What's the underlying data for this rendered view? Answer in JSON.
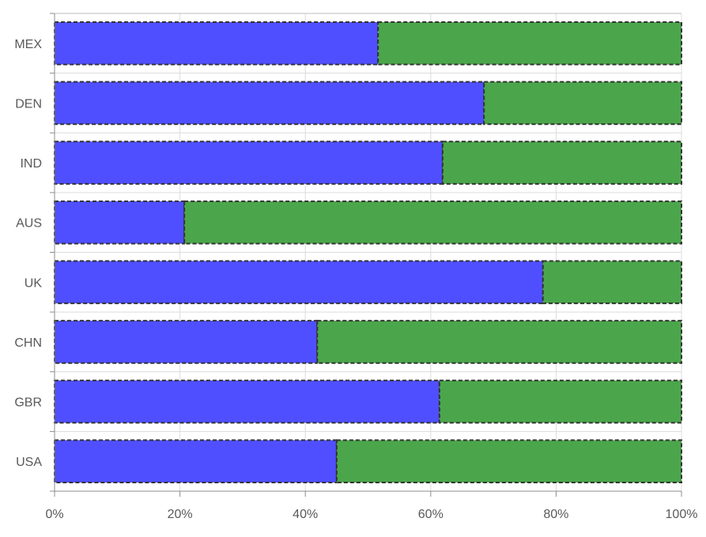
{
  "chart_data": {
    "type": "bar",
    "orientation": "horizontal",
    "stacked": "percent",
    "title": "",
    "xlabel": "",
    "ylabel": "",
    "categories": [
      "MEX",
      "DEN",
      "IND",
      "AUS",
      "UK",
      "CHN",
      "GBR",
      "USA"
    ],
    "series": [
      {
        "color": "#4b4bff",
        "values": [
          51.6,
          68.5,
          61.9,
          20.7,
          77.9,
          41.9,
          61.4,
          45.0
        ]
      },
      {
        "color": "#47a447",
        "values": [
          48.4,
          31.5,
          38.1,
          79.3,
          22.1,
          58.1,
          38.6,
          55.0
        ]
      }
    ],
    "xlim": [
      0,
      100
    ],
    "x_ticks": [
      "0%",
      "20%",
      "40%",
      "60%",
      "80%",
      "100%"
    ],
    "grid": true,
    "bar_border": "dashed",
    "legend": "none"
  }
}
